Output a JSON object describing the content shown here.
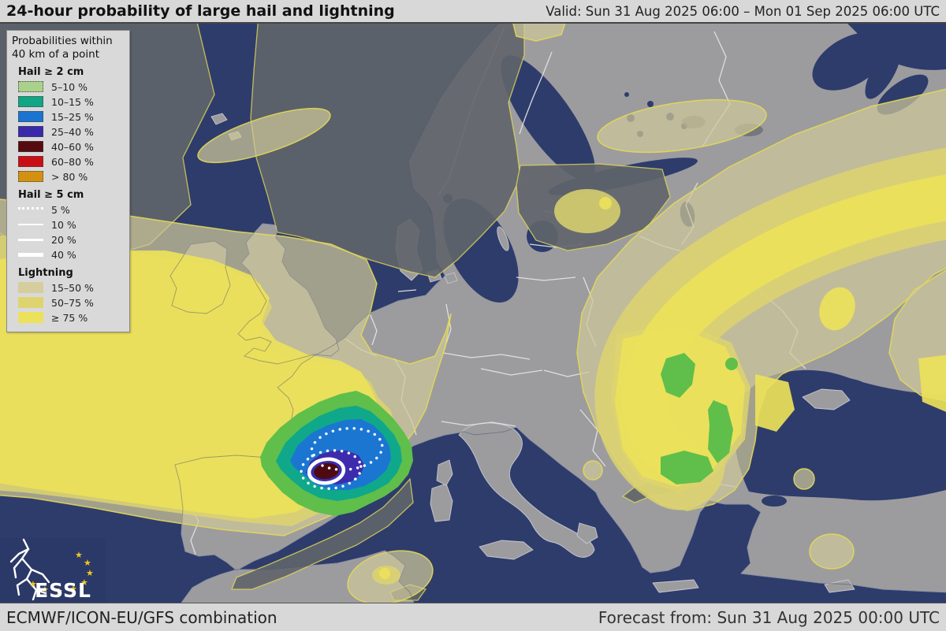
{
  "header": {
    "title": "24-hour probability of large hail and lightning",
    "valid": "Valid: Sun 31 Aug 2025 06:00 – Mon 01 Sep 2025 06:00 UTC"
  },
  "footer": {
    "model": "ECMWF/ICON-EU/GFS combination",
    "forecast_from": "Forecast from: Sun 31 Aug 2025 00:00 UTC"
  },
  "logo": {
    "text": "ESSL"
  },
  "legend": {
    "title_line1": "Probabilities within",
    "title_line2": "40 km of a point",
    "sections": [
      {
        "heading": "Hail ≥ 2 cm",
        "type": "swatch",
        "items": [
          {
            "label": "5–10 %",
            "color": "#a9d18b"
          },
          {
            "label": "10–15 %",
            "color": "#12a584"
          },
          {
            "label": "15–25 %",
            "color": "#1b74cf"
          },
          {
            "label": "25–40 %",
            "color": "#3a2aa9"
          },
          {
            "label": "40–60 %",
            "color": "#560b11"
          },
          {
            "label": "60–80 %",
            "color": "#c90f16"
          },
          {
            "label": "> 80 %",
            "color": "#d39110"
          }
        ]
      },
      {
        "heading": "Hail ≥ 5 cm",
        "type": "line",
        "items": [
          {
            "label": "5 %",
            "style": "dotted"
          },
          {
            "label": "10 %",
            "style": "thin"
          },
          {
            "label": "20 %",
            "style": "medium"
          },
          {
            "label": "40 %",
            "style": "thick"
          }
        ]
      },
      {
        "heading": "Lightning",
        "type": "swatch-plain",
        "items": [
          {
            "label": "15–50 %",
            "color": "#d5cd9d"
          },
          {
            "label": "50–75 %",
            "color": "#ded46f"
          },
          {
            "label": "≥ 75 %",
            "color": "#ece15a"
          }
        ]
      }
    ]
  },
  "colors": {
    "sea": "#2e3c6c",
    "land": "#9c9c9f",
    "coast": "#c9c9cd",
    "border": "#e3e3e3",
    "dgray": "#60656a",
    "ycont": "#e3d957",
    "l15": "#cfc89a",
    "l50": "#ddd46f",
    "l75": "#ece15a",
    "h5": "#5fbf4a",
    "h10": "#0fa88a",
    "h15": "#1b76d2",
    "h25": "#3c2cad",
    "h40": "#4e0a12",
    "star": "#f2c71b",
    "logo_bg": "#2b3968"
  }
}
